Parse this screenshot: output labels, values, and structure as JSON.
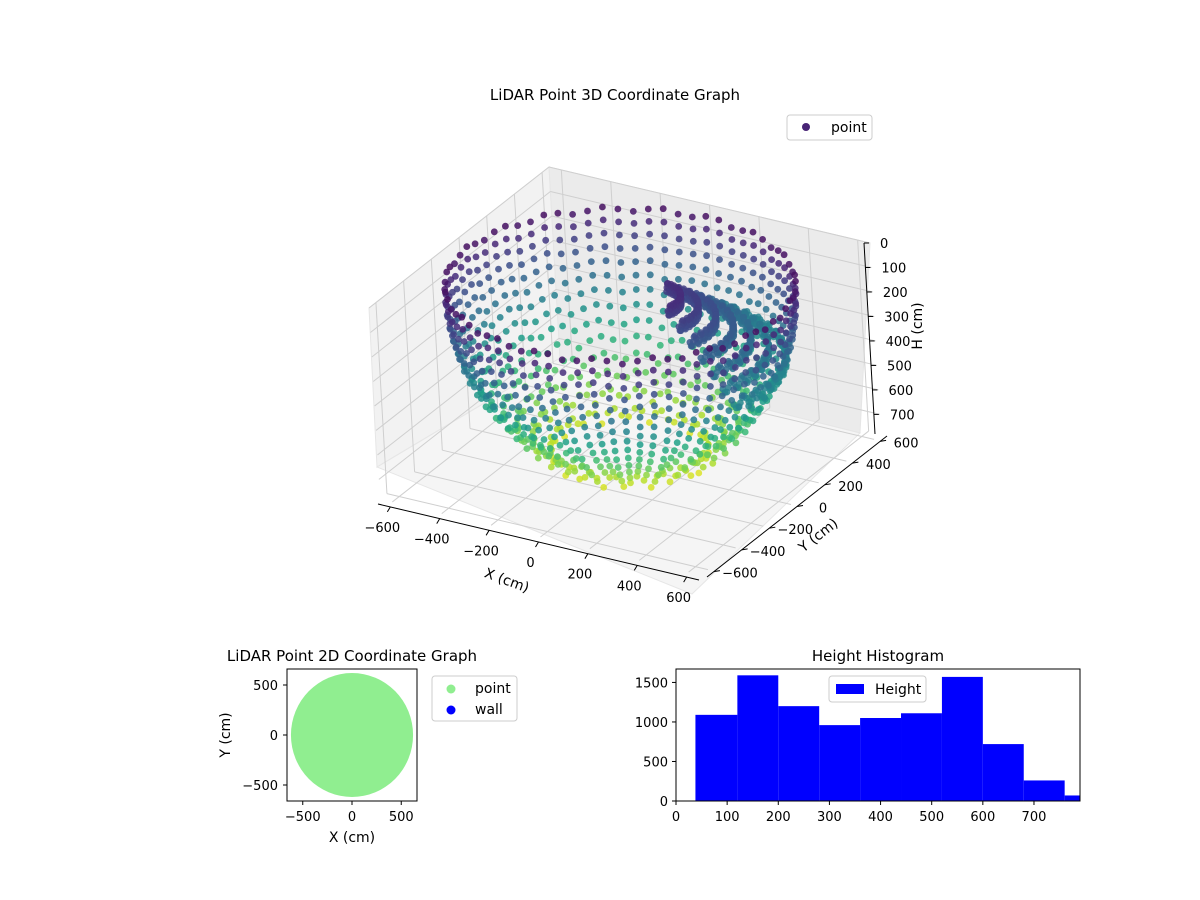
{
  "chart_data": [
    {
      "type": "scatter",
      "projection": "3d",
      "title": "LiDAR Point 3D Coordinate Graph",
      "xlabel": "X (cm)",
      "ylabel": "Y (cm)",
      "zlabel": "H (cm)",
      "xlim": [
        -650,
        650
      ],
      "ylim": [
        -650,
        650
      ],
      "zlim": [
        780,
        0
      ],
      "xticks": [
        "−600",
        "−400",
        "−200",
        "0",
        "200",
        "400",
        "600"
      ],
      "yticks": [
        "−600",
        "−400",
        "−200",
        "0",
        "200",
        "400",
        "600"
      ],
      "zticks": [
        "0",
        "100",
        "200",
        "300",
        "400",
        "500",
        "600",
        "700"
      ],
      "zaxis_inverted": true,
      "colormap": "viridis",
      "grid": true,
      "legend": {
        "position": "top-right",
        "entries": [
          {
            "label": "point",
            "color": "#482475"
          }
        ]
      },
      "series": [
        {
          "name": "point",
          "shape": "cylindrical wall",
          "radius_cm": 620,
          "h_range": [
            40,
            780
          ],
          "color_by": "height"
        }
      ]
    },
    {
      "type": "scatter",
      "title": "LiDAR Point 2D Coordinate Graph",
      "xlabel": "X (cm)",
      "ylabel": "Y (cm)",
      "xlim": [
        -660,
        660
      ],
      "ylim": [
        -660,
        660
      ],
      "xticks": [
        "−500",
        "0",
        "500"
      ],
      "yticks": [
        "−500",
        "0",
        "500"
      ],
      "legend": {
        "position": "outside-right",
        "entries": [
          {
            "label": "point",
            "color": "#90ee90"
          },
          {
            "label": "wall",
            "color": "#0000ff"
          }
        ]
      },
      "series": [
        {
          "name": "point",
          "shape": "filled disc",
          "radius_cm": 620,
          "color": "#90ee90"
        }
      ]
    },
    {
      "type": "bar",
      "subtype": "histogram",
      "title": "Height Histogram",
      "xlim": [
        0,
        790
      ],
      "ylim": [
        0,
        1670
      ],
      "xticks": [
        "0",
        "100",
        "200",
        "300",
        "400",
        "500",
        "600",
        "700"
      ],
      "yticks": [
        "0",
        "500",
        "1000",
        "1500"
      ],
      "bin_edges": [
        38,
        120,
        200,
        280,
        360,
        440,
        520,
        600,
        680,
        760,
        800
      ],
      "values": [
        1090,
        1590,
        1200,
        960,
        1050,
        1110,
        1570,
        720,
        260,
        70
      ],
      "color": "#0000ff",
      "legend": {
        "position": "top-center",
        "entries": [
          {
            "label": "Height",
            "color": "#0000ff"
          }
        ]
      }
    }
  ]
}
